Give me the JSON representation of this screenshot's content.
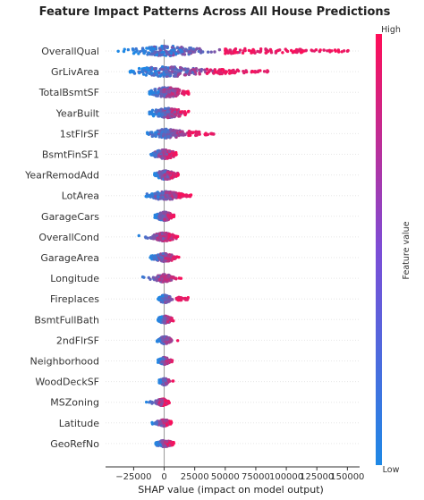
{
  "chart_data": {
    "type": "scatter",
    "title": "Feature Impact Patterns Across All House Predictions",
    "xlabel": "SHAP value (impact on model output)",
    "xlim": [
      -48000,
      160000
    ],
    "xticks": [
      -25000,
      0,
      25000,
      50000,
      75000,
      100000,
      125000,
      150000
    ],
    "xtick_labels": [
      "−25000",
      "0",
      "25000",
      "50000",
      "75000",
      "100000",
      "125000",
      "150000"
    ],
    "colorbar": {
      "label": "Feature value",
      "high_label": "High",
      "low_label": "Low",
      "low_color": "#1e88e5",
      "high_color": "#ff0d57"
    },
    "features": [
      {
        "name": "OverallQual",
        "min": -38000,
        "max": 152000,
        "core": [
          -20000,
          25000
        ],
        "tail": [
          50000,
          152000
        ]
      },
      {
        "name": "GrLivArea",
        "min": -28000,
        "max": 85000,
        "core": [
          -25000,
          30000
        ],
        "tail": [
          35000,
          85000
        ]
      },
      {
        "name": "TotalBsmtSF",
        "min": -12000,
        "max": 20000,
        "core": [
          -10000,
          15000
        ],
        "tail": null
      },
      {
        "name": "YearBuilt",
        "min": -12000,
        "max": 20000,
        "core": [
          -10000,
          15000
        ],
        "tail": null
      },
      {
        "name": "1stFlrSF",
        "min": -16000,
        "max": 42000,
        "core": [
          -10000,
          15000
        ],
        "tail": [
          20000,
          42000
        ]
      },
      {
        "name": "BsmtFinSF1",
        "min": -12000,
        "max": 10000,
        "core": [
          -8000,
          8000
        ],
        "tail": null
      },
      {
        "name": "YearRemodAdd",
        "min": -8000,
        "max": 12000,
        "core": [
          -6000,
          8000
        ],
        "tail": null
      },
      {
        "name": "LotArea",
        "min": -15000,
        "max": 22000,
        "core": [
          -10000,
          12000
        ],
        "tail": [
          12000,
          22000
        ]
      },
      {
        "name": "GarageCars",
        "min": -8000,
        "max": 8000,
        "core": [
          -6000,
          6000
        ],
        "tail": null
      },
      {
        "name": "OverallCond",
        "min": -22000,
        "max": 12000,
        "core": [
          -8000,
          8000
        ],
        "tail": null
      },
      {
        "name": "GarageArea",
        "min": -12000,
        "max": 12000,
        "core": [
          -8000,
          8000
        ],
        "tail": null
      },
      {
        "name": "Longitude",
        "min": -22000,
        "max": 15000,
        "core": [
          -6000,
          6000
        ],
        "tail": null
      },
      {
        "name": "Fireplaces",
        "min": -5000,
        "max": 20000,
        "core": [
          -4000,
          5000
        ],
        "tail": [
          10000,
          20000
        ]
      },
      {
        "name": "BsmtFullBath",
        "min": -5000,
        "max": 8000,
        "core": [
          -4000,
          5000
        ],
        "tail": null
      },
      {
        "name": "2ndFlrSF",
        "min": -6000,
        "max": 12000,
        "core": [
          -4000,
          5000
        ],
        "tail": null
      },
      {
        "name": "Neighborhood",
        "min": -5000,
        "max": 8000,
        "core": [
          -4000,
          4000
        ],
        "tail": null
      },
      {
        "name": "WoodDeckSF",
        "min": -4000,
        "max": 8000,
        "core": [
          -3000,
          3000
        ],
        "tail": null
      },
      {
        "name": "MSZoning",
        "min": -15000,
        "max": 5000,
        "core": [
          -6000,
          3000
        ],
        "tail": null
      },
      {
        "name": "Latitude",
        "min": -10000,
        "max": 6000,
        "core": [
          -5000,
          5000
        ],
        "tail": null
      },
      {
        "name": "GeoRefNo",
        "min": -7000,
        "max": 8000,
        "core": [
          -6000,
          6000
        ],
        "tail": null
      }
    ]
  }
}
